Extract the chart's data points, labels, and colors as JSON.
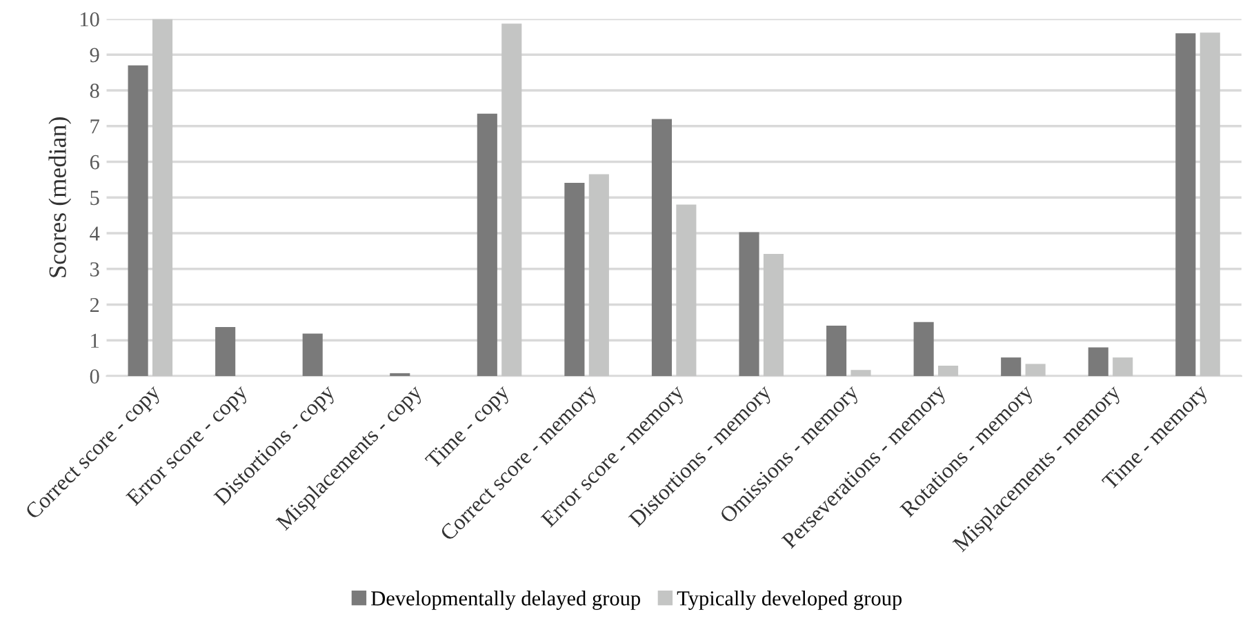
{
  "chart_data": {
    "type": "bar",
    "ylabel": "Scores (median)",
    "categories": [
      "Correct score - copy",
      "Error score - copy",
      "Distortions - copy",
      "Misplacements - copy",
      "Time - copy",
      "Correct score - memory",
      "Error score - memory",
      "Distortions - memory",
      "Omissions - memory",
      "Perseverations - memory",
      "Rotations - memory",
      "Misplacements - memory",
      "Time - memory"
    ],
    "series": [
      {
        "name": "Developmentally delayed group",
        "color": "#7a7a7a",
        "values": [
          8.7,
          1.37,
          1.19,
          0.08,
          7.35,
          5.41,
          7.2,
          4.03,
          1.41,
          1.51,
          0.52,
          0.8,
          9.6
        ]
      },
      {
        "name": "Typically developed group",
        "color": "#c4c5c4",
        "values": [
          10,
          0,
          0,
          0,
          9.87,
          5.65,
          4.8,
          3.42,
          0.17,
          0.29,
          0.34,
          0.52,
          9.62
        ]
      }
    ],
    "ylim": [
      0,
      10
    ],
    "yticks": [
      0,
      1,
      2,
      3,
      4,
      5,
      6,
      7,
      8,
      9,
      10
    ],
    "grid": "y",
    "legend": "bottom"
  }
}
